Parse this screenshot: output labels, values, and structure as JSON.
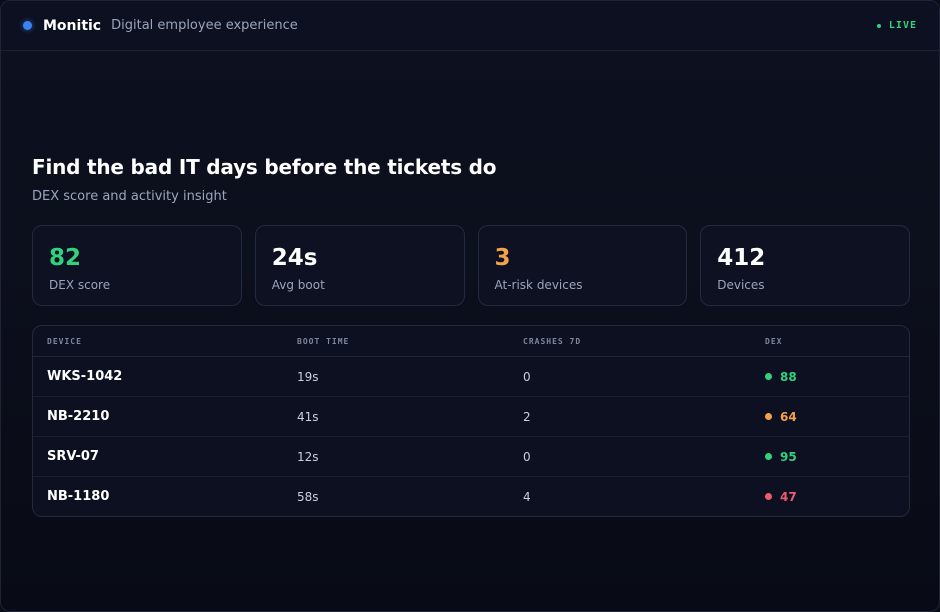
{
  "app": {
    "brand": "Monitic",
    "tagline": "Digital employee experience",
    "live_label": "LIVE"
  },
  "hero": {
    "title": "Find the bad IT days before the tickets do",
    "subtitle": "DEX score and activity insight"
  },
  "stats": [
    {
      "value": "82",
      "label": "DEX score",
      "color": "#34d17d"
    },
    {
      "value": "24s",
      "label": "Avg boot",
      "color": "#ffffff"
    },
    {
      "value": "3",
      "label": "At-risk devices",
      "color": "#f5a14a"
    },
    {
      "value": "412",
      "label": "Devices",
      "color": "#ffffff"
    }
  ],
  "table": {
    "headers": [
      "DEVICE",
      "BOOT TIME",
      "CRASHES 7D",
      "DEX"
    ],
    "rows": [
      {
        "device": "WKS-1042",
        "boot": "19s",
        "crashes": "0",
        "dex": "88",
        "status": "good",
        "color": "#34d17d"
      },
      {
        "device": "NB-2210",
        "boot": "41s",
        "crashes": "2",
        "dex": "64",
        "status": "warn",
        "color": "#f5a14a"
      },
      {
        "device": "SRV-07",
        "boot": "12s",
        "crashes": "0",
        "dex": "95",
        "status": "good",
        "color": "#34d17d"
      },
      {
        "device": "NB-1180",
        "boot": "58s",
        "crashes": "4",
        "dex": "47",
        "status": "bad",
        "color": "#ef5a6f"
      }
    ]
  },
  "colors": {
    "accent": "#3b82f6",
    "good": "#34d17d",
    "warn": "#f5a14a",
    "bad": "#ef5a6f"
  }
}
